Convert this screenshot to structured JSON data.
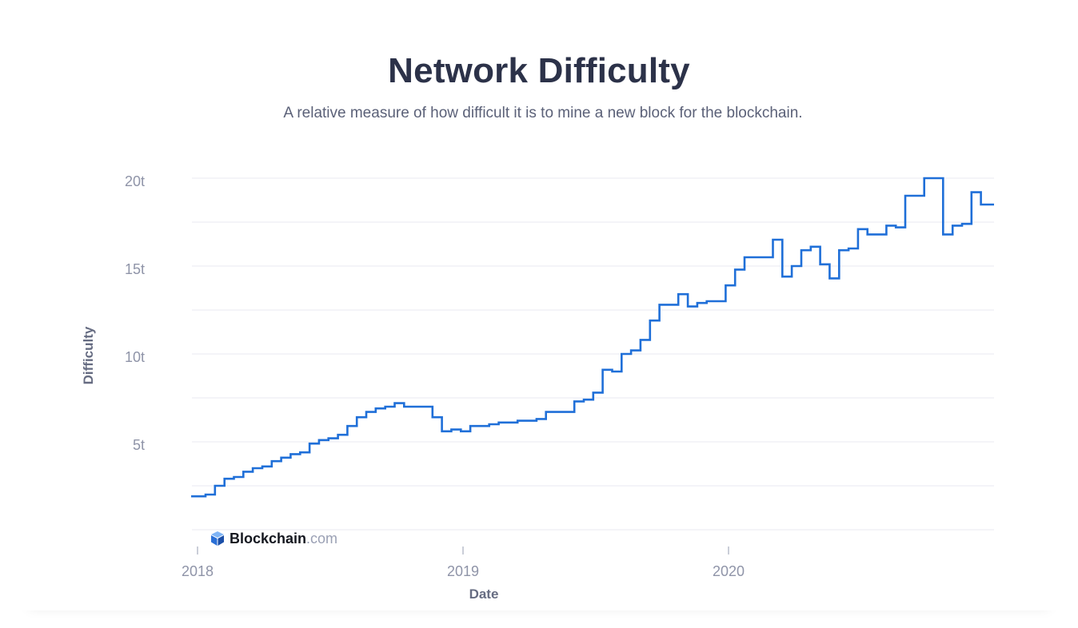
{
  "header": {
    "title": "Network Difficulty",
    "subtitle": "A relative measure of how difficult it is to mine a new block for the blockchain."
  },
  "watermark": {
    "brand": "Blockchain",
    "domain": ".com",
    "icon": "blockchain-cube-icon"
  },
  "colors": {
    "line": "#1f6fd8",
    "title": "#2c3249",
    "grid": "#e8eaf0"
  },
  "chart_data": {
    "type": "line",
    "title": "Network Difficulty",
    "subtitle": "A relative measure of how difficult it is to mine a new block for the blockchain.",
    "xlabel": "Date",
    "ylabel": "Difficulty",
    "x_ticks": [
      "2018",
      "2019",
      "2020"
    ],
    "y_ticks": [
      "5t",
      "10t",
      "15t",
      "20t"
    ],
    "ylim": [
      0,
      20
    ],
    "xlim": [
      "2018-01-01",
      "2020-12-31"
    ],
    "grid": true,
    "line_shape": "step",
    "series": [
      {
        "unit": "trillion",
        "x": [
          "2018-01-01",
          "2018-01-12",
          "2018-01-25",
          "2018-02-07",
          "2018-02-20",
          "2018-03-05",
          "2018-03-18",
          "2018-03-31",
          "2018-04-13",
          "2018-04-26",
          "2018-05-09",
          "2018-05-22",
          "2018-06-04",
          "2018-06-17",
          "2018-06-30",
          "2018-07-13",
          "2018-07-26",
          "2018-08-08",
          "2018-08-21",
          "2018-09-03",
          "2018-09-16",
          "2018-09-29",
          "2018-10-12",
          "2018-10-25",
          "2018-11-07",
          "2018-11-20",
          "2018-12-03",
          "2018-12-16",
          "2018-12-29",
          "2019-01-11",
          "2019-01-24",
          "2019-02-06",
          "2019-02-19",
          "2019-03-04",
          "2019-03-17",
          "2019-03-30",
          "2019-04-12",
          "2019-04-25",
          "2019-05-08",
          "2019-05-21",
          "2019-06-03",
          "2019-06-16",
          "2019-06-29",
          "2019-07-12",
          "2019-07-25",
          "2019-08-07",
          "2019-08-20",
          "2019-09-02",
          "2019-09-15",
          "2019-09-28",
          "2019-10-11",
          "2019-10-24",
          "2019-11-06",
          "2019-11-19",
          "2019-12-02",
          "2019-12-15",
          "2019-12-28",
          "2020-01-10",
          "2020-01-23",
          "2020-02-05",
          "2020-02-18",
          "2020-03-02",
          "2020-03-15",
          "2020-03-28",
          "2020-04-10",
          "2020-04-23",
          "2020-05-06",
          "2020-05-19",
          "2020-06-01",
          "2020-06-14",
          "2020-06-27",
          "2020-07-10",
          "2020-07-23",
          "2020-08-05",
          "2020-08-18",
          "2020-08-31",
          "2020-09-13",
          "2020-09-26",
          "2020-10-09",
          "2020-10-22",
          "2020-11-04",
          "2020-11-17",
          "2020-11-30",
          "2020-12-13",
          "2020-12-26"
        ],
        "y": [
          1.9,
          2.0,
          2.5,
          2.9,
          3.0,
          3.3,
          3.5,
          3.6,
          3.9,
          4.1,
          4.3,
          4.4,
          4.9,
          5.1,
          5.2,
          5.4,
          5.9,
          6.4,
          6.7,
          6.9,
          7.0,
          7.2,
          7.0,
          7.0,
          7.0,
          6.4,
          5.6,
          5.7,
          5.6,
          5.9,
          5.9,
          6.0,
          6.1,
          6.1,
          6.2,
          6.2,
          6.3,
          6.7,
          6.7,
          6.7,
          7.3,
          7.4,
          7.8,
          9.1,
          9.0,
          10.0,
          10.2,
          10.8,
          11.9,
          12.8,
          12.8,
          13.4,
          12.7,
          12.9,
          13.0,
          13.0,
          13.9,
          14.8,
          15.5,
          15.5,
          15.5,
          16.5,
          14.4,
          15.0,
          15.9,
          16.1,
          15.1,
          14.3,
          15.9,
          16.0,
          17.1,
          16.8,
          16.8,
          17.3,
          17.2,
          19.0,
          19.0,
          20.0,
          20.0,
          16.8,
          17.3,
          17.4,
          19.2,
          18.5,
          18.5
        ]
      }
    ]
  }
}
